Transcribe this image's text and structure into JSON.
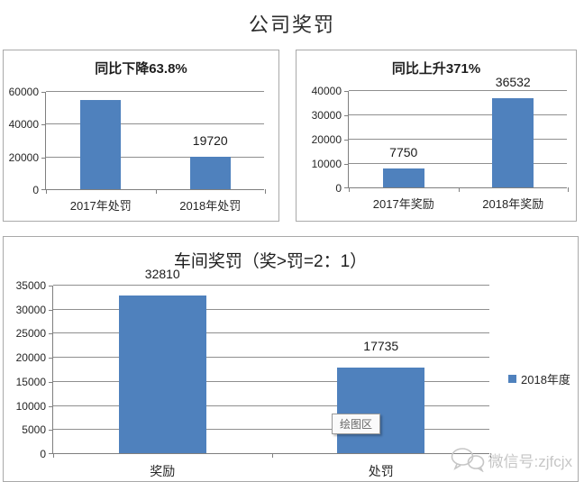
{
  "page_title": "公司奖罚",
  "colors": {
    "bar": "#4f81bd",
    "gridline": "#8f8f8f",
    "axis": "#7f7f7f",
    "panel_border": "#a9a9a9",
    "watermark": "#c6c6c6"
  },
  "tooltip": {
    "label": "绘图区"
  },
  "watermark": {
    "icon": "wechat-icon",
    "label": "微信号:zjfcjx"
  },
  "chart_data": [
    {
      "type": "bar",
      "title": "同比下降63.8%",
      "categories": [
        "2017年处罚",
        "2018年处罚"
      ],
      "values": [
        54475,
        19720
      ],
      "data_labels": [
        null,
        "19720"
      ],
      "ylim": [
        0,
        60000
      ],
      "yticks": [
        0,
        20000,
        40000,
        60000
      ],
      "grid": true,
      "legend": null
    },
    {
      "type": "bar",
      "title": "同比上升371%",
      "categories": [
        "2017年奖励",
        "2018年奖励"
      ],
      "values": [
        7750,
        36532
      ],
      "data_labels": [
        "7750",
        "36532"
      ],
      "ylim": [
        0,
        40000
      ],
      "yticks": [
        0,
        10000,
        20000,
        30000,
        40000
      ],
      "grid": true,
      "legend": null
    },
    {
      "type": "bar",
      "title": "车间奖罚（奖>罚=2：1）",
      "categories": [
        "奖励",
        "处罚"
      ],
      "values": [
        32810,
        17735
      ],
      "data_labels": [
        "32810",
        "17735"
      ],
      "ylim": [
        0,
        35000
      ],
      "yticks": [
        0,
        5000,
        10000,
        15000,
        20000,
        25000,
        30000,
        35000
      ],
      "grid": true,
      "legend": [
        "2018年度"
      ],
      "legend_position": "right"
    }
  ]
}
